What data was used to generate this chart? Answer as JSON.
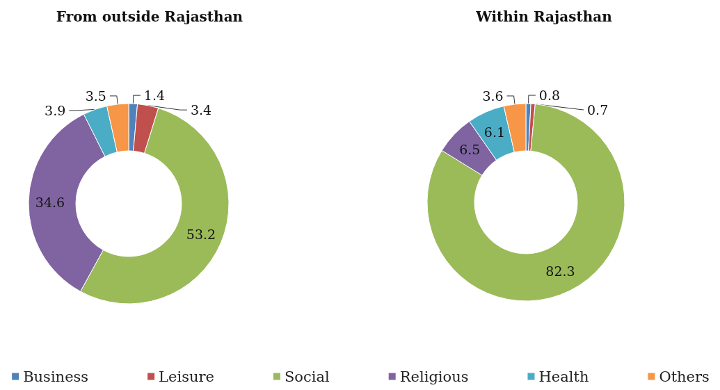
{
  "chart_data": {
    "type": "donut",
    "categories": [
      "Business",
      "Leisure",
      "Social",
      "Religious",
      "Health",
      "Others"
    ],
    "colors": [
      "#4f81bd",
      "#c0504d",
      "#9bbb59",
      "#8064a2",
      "#4bacc6",
      "#f79646"
    ],
    "series": [
      {
        "name": "From outside Rajasthan",
        "values": [
          1.4,
          3.4,
          53.2,
          34.6,
          3.9,
          3.5
        ]
      },
      {
        "name": "Within Rajasthan",
        "values": [
          0.8,
          0.7,
          82.3,
          6.5,
          6.1,
          3.6
        ]
      }
    ],
    "data_labels": true,
    "legend": "bottom"
  }
}
